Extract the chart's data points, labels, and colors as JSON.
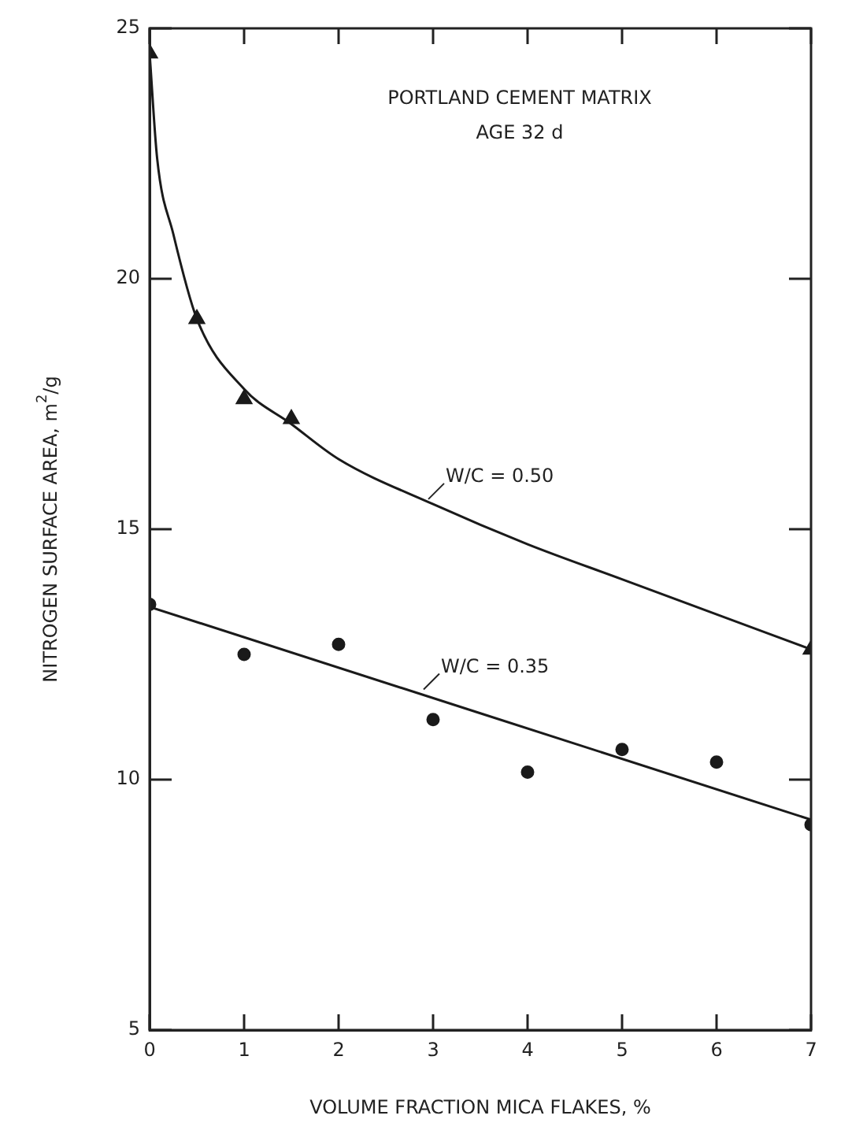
{
  "chart_data": {
    "type": "scatter",
    "title": "PORTLAND CEMENT MATRIX",
    "subtitle": "AGE 32 d",
    "xlabel": "VOLUME FRACTION MICA FLAKES, %",
    "ylabel": "NITROGEN SURFACE AREA, m$^{2}$/g",
    "xlim": [
      0,
      7
    ],
    "xticks": [
      0,
      1,
      2,
      3,
      4,
      5,
      6,
      7
    ],
    "ylim": [
      5,
      25
    ],
    "yticks": [
      5,
      10,
      15,
      20,
      25
    ],
    "grid": false,
    "legend": false,
    "series": [
      {
        "type": "scatter",
        "marker": "triangle",
        "color": "#1a1a1a",
        "x": [
          0,
          0.5,
          1,
          1.5,
          7
        ],
        "values": [
          24.5,
          19.2,
          17.6,
          17.2,
          12.6
        ]
      },
      {
        "type": "scatter",
        "marker": "circle",
        "color": "#1a1a1a",
        "x": [
          0,
          1,
          2,
          3,
          4,
          5,
          6,
          7
        ],
        "values": [
          13.5,
          12.5,
          12.7,
          11.2,
          10.15,
          10.6,
          10.35,
          9.1
        ]
      },
      {
        "type": "line",
        "marker": "none",
        "color": "#1a1a1a",
        "x": [
          0,
          0.08,
          0.25,
          0.5,
          1,
          1.5,
          2,
          3,
          4,
          5,
          6,
          7
        ],
        "values": [
          24.5,
          22.4,
          20.9,
          19.2,
          17.8,
          17.1,
          16.4,
          15.5,
          14.7,
          14.0,
          13.3,
          12.6
        ]
      },
      {
        "type": "line",
        "marker": "none",
        "color": "#1a1a1a",
        "x": [
          0,
          7
        ],
        "values": [
          13.45,
          9.2
        ]
      }
    ],
    "annotations": [
      {
        "text": "W/C = 0.50",
        "x": 2.95,
        "y": 15.6
      },
      {
        "text": "W/C = 0.35",
        "x": 2.9,
        "y": 11.8
      }
    ]
  }
}
